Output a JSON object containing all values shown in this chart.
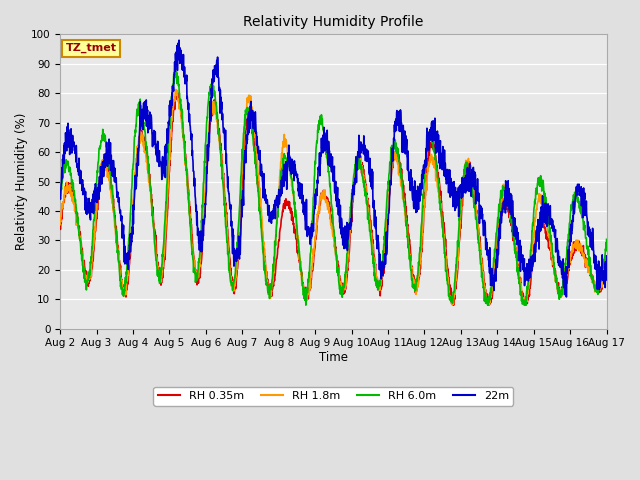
{
  "title": "Relativity Humidity Profile",
  "xlabel": "Time",
  "ylabel": "Relativity Humidity (%)",
  "xlim": [
    0,
    15
  ],
  "ylim": [
    0,
    100
  ],
  "yticks": [
    0,
    10,
    20,
    30,
    40,
    50,
    60,
    70,
    80,
    90,
    100
  ],
  "xtick_labels": [
    "Aug 2",
    "Aug 3",
    "Aug 4",
    "Aug 5",
    "Aug 6",
    "Aug 7",
    "Aug 8",
    "Aug 9",
    "Aug 10",
    "Aug 11",
    "Aug 12",
    "Aug 13",
    "Aug 14",
    "Aug 15",
    "Aug 16",
    "Aug 17"
  ],
  "colors": {
    "rh035": "#dd0000",
    "rh18": "#ff9900",
    "rh60": "#00bb00",
    "rh22": "#0000cc"
  },
  "legend_labels": [
    "RH 0.35m",
    "RH 1.8m",
    "RH 6.0m",
    "22m"
  ],
  "annotation_text": "TZ_tmet",
  "annotation_bg": "#ffff99",
  "annotation_border": "#cc8800",
  "annotation_text_color": "#990000",
  "fig_bg": "#e0e0e0",
  "plot_bg": "#e8e8e8",
  "grid_color": "#ffffff",
  "line_width": 1.2
}
